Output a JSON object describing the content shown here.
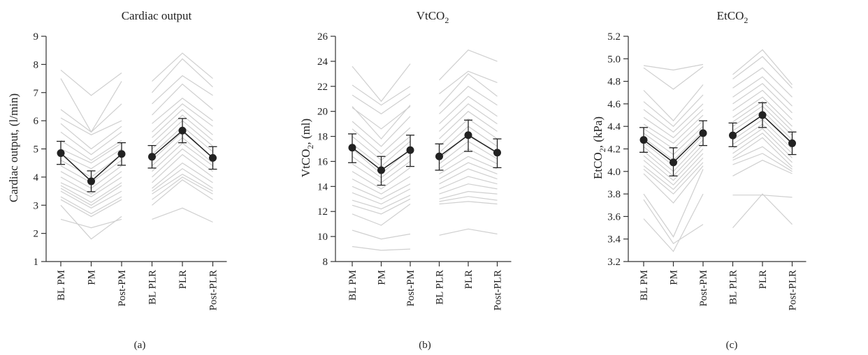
{
  "chart_data": [
    {
      "type": "line",
      "panel_label": "(a)",
      "title": "Cardiac output",
      "ylabel": "Cardiac output, (l/min)",
      "ylabel_sub": "",
      "ylabel_tail": "",
      "title_main": "Cardiac output",
      "title_sub": "",
      "categories": [
        "BL PM",
        "PM",
        "Post-PM",
        "BL PLR",
        "PLR",
        "Post-PLR"
      ],
      "ylim": [
        1,
        9
      ],
      "yticks": [
        1,
        2,
        3,
        4,
        5,
        6,
        7,
        8,
        9
      ],
      "ytick_labels": [
        "1",
        "2",
        "3",
        "4",
        "5",
        "6",
        "7",
        "8",
        "9"
      ],
      "mean": {
        "values": [
          4.85,
          3.85,
          4.82,
          4.72,
          5.65,
          4.68
        ],
        "err_low": [
          4.45,
          3.48,
          4.42,
          4.32,
          5.22,
          4.28
        ],
        "err_high": [
          5.27,
          4.22,
          5.22,
          5.12,
          6.08,
          5.08
        ]
      },
      "subjects_pm": [
        [
          7.8,
          6.9,
          7.7
        ],
        [
          7.5,
          5.6,
          7.4
        ],
        [
          6.4,
          5.6,
          6.6
        ],
        [
          6.1,
          5.5,
          6.0
        ],
        [
          5.9,
          5.0,
          5.8
        ],
        [
          5.6,
          4.8,
          5.6
        ],
        [
          5.3,
          4.6,
          5.3
        ],
        [
          5.0,
          4.5,
          5.2
        ],
        [
          4.8,
          4.3,
          5.0
        ],
        [
          4.6,
          4.0,
          4.8
        ],
        [
          4.4,
          3.8,
          4.6
        ],
        [
          4.2,
          3.6,
          4.4
        ],
        [
          4.0,
          3.4,
          4.2
        ],
        [
          3.8,
          3.3,
          4.0
        ],
        [
          3.7,
          3.1,
          3.8
        ],
        [
          3.6,
          3.0,
          3.7
        ],
        [
          3.5,
          2.9,
          3.5
        ],
        [
          3.3,
          2.7,
          3.3
        ],
        [
          3.2,
          2.6,
          3.2
        ],
        [
          2.5,
          2.2,
          2.5
        ],
        [
          3.0,
          1.8,
          2.6
        ]
      ],
      "subjects_plr": [
        [
          7.4,
          8.4,
          7.5
        ],
        [
          7.0,
          8.2,
          7.2
        ],
        [
          6.6,
          7.6,
          6.9
        ],
        [
          6.2,
          7.3,
          6.4
        ],
        [
          5.9,
          6.8,
          6.0
        ],
        [
          5.6,
          6.6,
          5.8
        ],
        [
          5.4,
          6.4,
          5.5
        ],
        [
          5.2,
          6.2,
          5.3
        ],
        [
          5.0,
          6.0,
          5.1
        ],
        [
          4.8,
          5.8,
          4.9
        ],
        [
          4.6,
          5.6,
          4.7
        ],
        [
          4.4,
          5.4,
          4.5
        ],
        [
          4.2,
          5.2,
          4.4
        ],
        [
          4.0,
          5.0,
          4.2
        ],
        [
          3.8,
          4.8,
          4.0
        ],
        [
          3.6,
          4.5,
          3.8
        ],
        [
          3.5,
          4.3,
          3.6
        ],
        [
          3.4,
          4.1,
          3.5
        ],
        [
          3.2,
          4.0,
          3.4
        ],
        [
          3.0,
          3.9,
          3.2
        ],
        [
          2.5,
          2.9,
          2.4
        ]
      ]
    },
    {
      "type": "line",
      "panel_label": "(b)",
      "title": "VtCO2",
      "title_main": "VtCO",
      "title_sub": "2",
      "ylabel": "VtCO2, (ml)",
      "ylabel_main": "VtCO",
      "ylabel_sub": "2",
      "ylabel_tail": ", (ml)",
      "categories": [
        "BL PM",
        "PM",
        "Post-PM",
        "BL PLR",
        "PLR",
        "Post-PLR"
      ],
      "ylim": [
        8,
        26
      ],
      "yticks": [
        8,
        10,
        12,
        14,
        16,
        18,
        20,
        22,
        24,
        26
      ],
      "ytick_labels": [
        "8",
        "10",
        "12",
        "14",
        "16",
        "18",
        "20",
        "22",
        "24",
        "26"
      ],
      "mean": {
        "values": [
          17.1,
          15.3,
          16.9,
          16.4,
          18.1,
          16.7
        ],
        "err_low": [
          15.9,
          14.1,
          15.6,
          15.3,
          16.8,
          15.5
        ],
        "err_high": [
          18.2,
          16.4,
          18.1,
          17.4,
          19.3,
          17.8
        ]
      },
      "subjects_pm": [
        [
          23.6,
          20.8,
          23.8
        ],
        [
          22.1,
          20.5,
          22.0
        ],
        [
          21.3,
          19.8,
          21.4
        ],
        [
          20.3,
          18.6,
          20.4
        ],
        [
          20.4,
          17.8,
          20.5
        ],
        [
          19.2,
          17.2,
          19.6
        ],
        [
          18.6,
          16.6,
          18.7
        ],
        [
          18.0,
          16.1,
          18.0
        ],
        [
          17.4,
          15.6,
          17.6
        ],
        [
          17.0,
          15.0,
          17.0
        ],
        [
          16.4,
          14.7,
          16.5
        ],
        [
          15.8,
          14.3,
          16.0
        ],
        [
          15.2,
          13.8,
          15.5
        ],
        [
          14.6,
          13.4,
          14.8
        ],
        [
          14.0,
          13.0,
          14.2
        ],
        [
          13.5,
          12.6,
          13.8
        ],
        [
          12.9,
          12.2,
          13.3
        ],
        [
          12.5,
          11.8,
          13.0
        ],
        [
          11.8,
          10.9,
          12.6
        ],
        [
          10.5,
          9.8,
          10.2
        ],
        [
          9.2,
          8.9,
          9.0
        ]
      ],
      "subjects_plr": [
        [
          22.5,
          24.9,
          24.0
        ],
        [
          21.4,
          23.2,
          22.3
        ],
        [
          20.4,
          23.0,
          21.2
        ],
        [
          19.8,
          22.0,
          20.5
        ],
        [
          19.0,
          21.2,
          19.6
        ],
        [
          18.4,
          20.6,
          19.0
        ],
        [
          17.8,
          20.0,
          18.4
        ],
        [
          17.2,
          19.4,
          17.8
        ],
        [
          16.7,
          18.8,
          17.2
        ],
        [
          16.2,
          18.2,
          16.6
        ],
        [
          15.8,
          17.6,
          16.2
        ],
        [
          15.4,
          17.0,
          15.8
        ],
        [
          15.0,
          16.4,
          15.4
        ],
        [
          14.6,
          15.9,
          15.0
        ],
        [
          14.2,
          15.4,
          14.6
        ],
        [
          13.8,
          14.8,
          14.2
        ],
        [
          13.4,
          14.2,
          13.8
        ],
        [
          13.0,
          13.6,
          13.4
        ],
        [
          12.8,
          13.2,
          12.9
        ],
        [
          12.6,
          12.8,
          12.6
        ],
        [
          10.1,
          10.6,
          10.2
        ]
      ]
    },
    {
      "type": "line",
      "panel_label": "(c)",
      "title": "EtCO2",
      "title_main": "EtCO",
      "title_sub": "2",
      "ylabel": "EtCO2, (kPa)",
      "ylabel_main": "EtCO",
      "ylabel_sub": "2",
      "ylabel_tail": ", (kPa)",
      "categories": [
        "BL PM",
        "PM",
        "Post-PM",
        "BL PLR",
        "PLR",
        "Post-PLR"
      ],
      "ylim": [
        3.2,
        5.2
      ],
      "yticks": [
        3.2,
        3.4,
        3.6,
        3.8,
        4.0,
        4.2,
        4.4,
        4.6,
        4.8,
        5.0,
        5.2
      ],
      "ytick_labels": [
        "3.2",
        "3.4",
        "3.6",
        "3.8",
        "4.0",
        "4.2",
        "4.4",
        "4.6",
        "4.8",
        "5.0",
        "5.2"
      ],
      "mean": {
        "values": [
          4.28,
          4.08,
          4.34,
          4.32,
          4.5,
          4.25
        ],
        "err_low": [
          4.17,
          3.96,
          4.23,
          4.22,
          4.39,
          4.15
        ],
        "err_high": [
          4.39,
          4.21,
          4.45,
          4.43,
          4.61,
          4.35
        ]
      },
      "subjects_pm": [
        [
          4.94,
          4.9,
          4.95
        ],
        [
          4.92,
          4.73,
          4.93
        ],
        [
          4.72,
          4.45,
          4.77
        ],
        [
          4.62,
          4.4,
          4.68
        ],
        [
          4.55,
          4.35,
          4.6
        ],
        [
          4.48,
          4.3,
          4.55
        ],
        [
          4.42,
          4.25,
          4.5
        ],
        [
          4.38,
          4.2,
          4.45
        ],
        [
          4.34,
          4.15,
          4.4
        ],
        [
          4.3,
          4.1,
          4.36
        ],
        [
          4.26,
          4.05,
          4.32
        ],
        [
          4.22,
          4.0,
          4.28
        ],
        [
          4.18,
          3.96,
          4.24
        ],
        [
          4.14,
          3.92,
          4.2
        ],
        [
          4.1,
          3.88,
          4.16
        ],
        [
          4.05,
          3.84,
          4.12
        ],
        [
          4.02,
          3.8,
          4.08
        ],
        [
          3.98,
          3.72,
          4.05
        ],
        [
          3.8,
          3.42,
          4.02
        ],
        [
          3.58,
          3.29,
          3.8
        ],
        [
          3.75,
          3.36,
          3.53
        ]
      ],
      "subjects_plr": [
        [
          4.86,
          5.08,
          4.77
        ],
        [
          4.82,
          5.02,
          4.74
        ],
        [
          4.74,
          4.92,
          4.66
        ],
        [
          4.66,
          4.84,
          4.58
        ],
        [
          4.6,
          4.78,
          4.52
        ],
        [
          4.54,
          4.72,
          4.46
        ],
        [
          4.48,
          4.66,
          4.4
        ],
        [
          4.44,
          4.62,
          4.36
        ],
        [
          4.4,
          4.58,
          4.32
        ],
        [
          4.36,
          4.54,
          4.28
        ],
        [
          4.32,
          4.5,
          4.24
        ],
        [
          4.28,
          4.46,
          4.2
        ],
        [
          4.24,
          4.42,
          4.16
        ],
        [
          4.2,
          4.38,
          4.12
        ],
        [
          4.16,
          4.34,
          4.08
        ],
        [
          4.12,
          4.3,
          4.04
        ],
        [
          4.1,
          4.22,
          4.02
        ],
        [
          4.06,
          4.16,
          4.0
        ],
        [
          3.96,
          4.1,
          3.98
        ],
        [
          3.79,
          3.79,
          3.77
        ],
        [
          3.5,
          3.8,
          3.53
        ]
      ]
    }
  ]
}
